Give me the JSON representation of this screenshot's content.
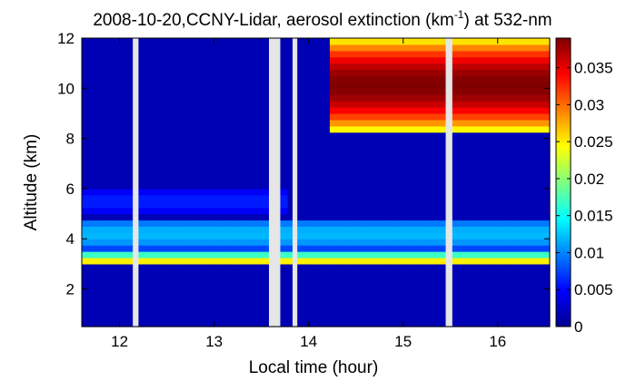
{
  "chart_data": {
    "type": "heatmap",
    "title": {
      "prefix": "2008-10-20,CCNY-Lidar, aerosol extinction (km",
      "superscript": "-1",
      "suffix": ") at 532-nm"
    },
    "xlabel": "Local time (hour)",
    "ylabel": "Altitude (km)",
    "xlim": [
      11.6,
      16.55
    ],
    "ylim": [
      0.5,
      12
    ],
    "x_ticks": [
      12,
      13,
      14,
      15,
      16
    ],
    "y_ticks": [
      2,
      4,
      6,
      8,
      10,
      12
    ],
    "colorbar": {
      "colormap": "jet",
      "range": [
        0,
        0.039
      ],
      "ticks": [
        0,
        0.005,
        0.01,
        0.015,
        0.02,
        0.025,
        0.03,
        0.035
      ],
      "tick_labels": [
        "0",
        "0.005",
        "0.01",
        "0.015",
        "0.02",
        "0.025",
        "0.03",
        "0.035"
      ]
    },
    "data_gaps_hours": [
      [
        12.14,
        12.2
      ],
      [
        13.58,
        13.7
      ],
      [
        13.83,
        13.88
      ],
      [
        15.45,
        15.52
      ]
    ],
    "layers": [
      {
        "feature": "lofted aerosol layer",
        "x_range": [
          11.6,
          16.55
        ],
        "altitude_km": [
          3.6,
          4.8
        ],
        "extinction": 0.012
      },
      {
        "feature": "main aerosol layer",
        "x_range": [
          11.6,
          16.55
        ],
        "altitude_km": [
          2.9,
          3.4
        ],
        "extinction": 0.025
      },
      {
        "feature": "upper residual layer",
        "x_range": [
          11.6,
          13.8
        ],
        "altitude_km": [
          5.0,
          6.0
        ],
        "extinction": 0.006
      },
      {
        "feature": "high cloud",
        "x_range": [
          14.2,
          16.55
        ],
        "altitude_km": [
          8.3,
          12.0
        ],
        "extinction": 0.039
      }
    ],
    "background_extinction": 0.002,
    "grid": false,
    "legend": "colorbar-right"
  }
}
